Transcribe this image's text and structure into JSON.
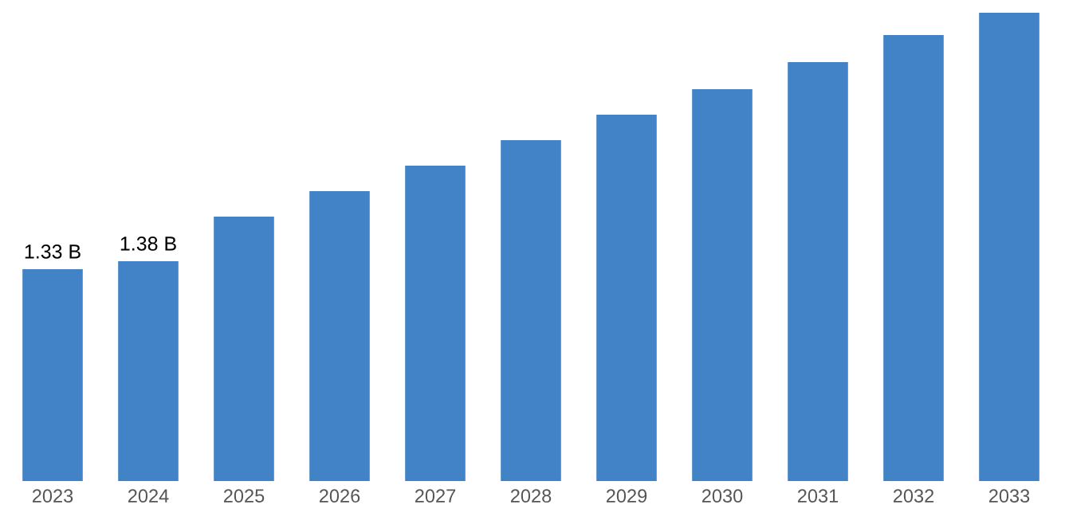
{
  "chart_data": {
    "type": "bar",
    "categories": [
      "2023",
      "2024",
      "2025",
      "2026",
      "2027",
      "2028",
      "2029",
      "2030",
      "2031",
      "2032",
      "2033"
    ],
    "values": [
      1.33,
      1.38,
      1.66,
      1.82,
      1.98,
      2.14,
      2.3,
      2.46,
      2.63,
      2.8,
      2.94
    ],
    "value_labels": [
      "1.33 B",
      "1.38 B",
      null,
      null,
      null,
      null,
      null,
      null,
      null,
      null,
      null
    ],
    "color": "#4282c6",
    "tick_labels": "x",
    "grid": false,
    "legend": false
  }
}
